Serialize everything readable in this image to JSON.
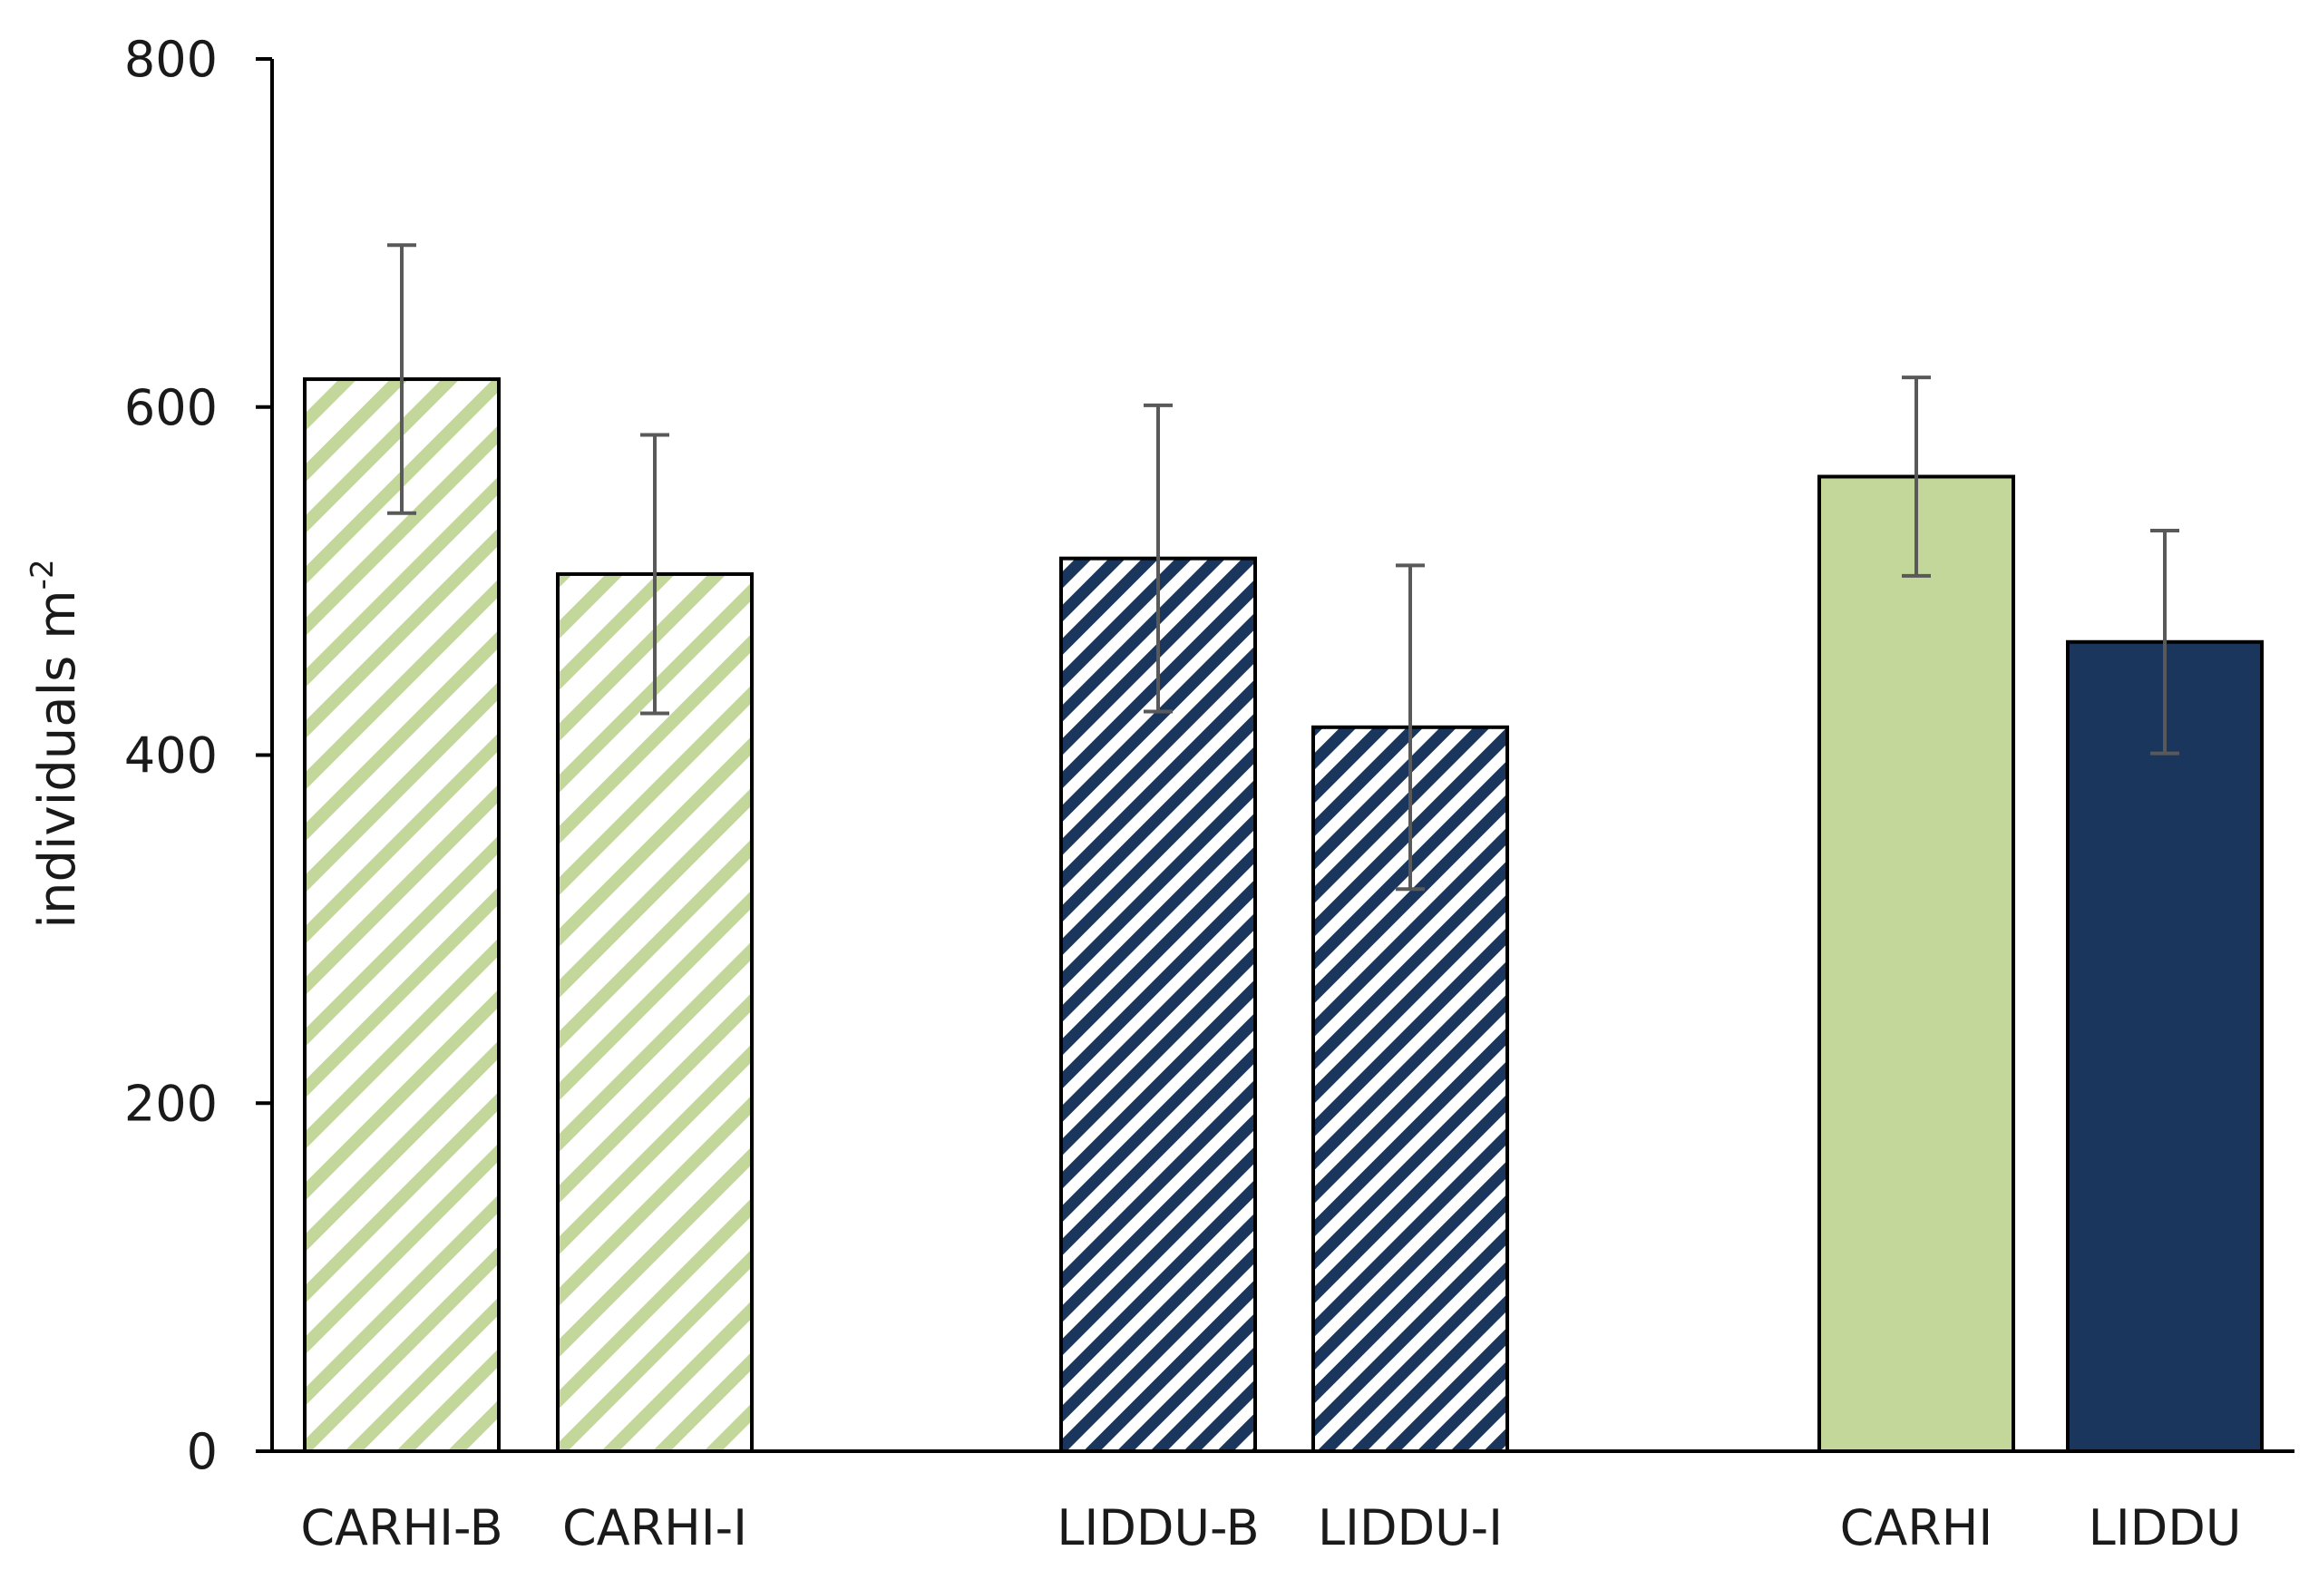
{
  "chart_data": {
    "type": "bar",
    "title": "",
    "xlabel": "",
    "ylabel": "individuals m",
    "ylabel_superscript": "-2",
    "ylim": [
      0,
      800
    ],
    "yticks": [
      0,
      200,
      400,
      600,
      800
    ],
    "grid": false,
    "legend": "none",
    "categories": [
      "CARHI-B",
      "CARHI-I",
      "LIDDU-B",
      "LIDDU-I",
      "CARHI",
      "LIDDU"
    ],
    "values": [
      616,
      504,
      513,
      416,
      560,
      465
    ],
    "errors": [
      77,
      80,
      88,
      93,
      57,
      64
    ],
    "groups": [
      0,
      0,
      1,
      1,
      2,
      2
    ],
    "fills": [
      "hatch-green",
      "hatch-green",
      "hatch-navy",
      "hatch-navy",
      "solid-green",
      "solid-navy"
    ],
    "colors": {
      "green": "#c4d79b",
      "navy": "#1b365d",
      "error_bar": "#595959",
      "axis": "#000000"
    }
  }
}
